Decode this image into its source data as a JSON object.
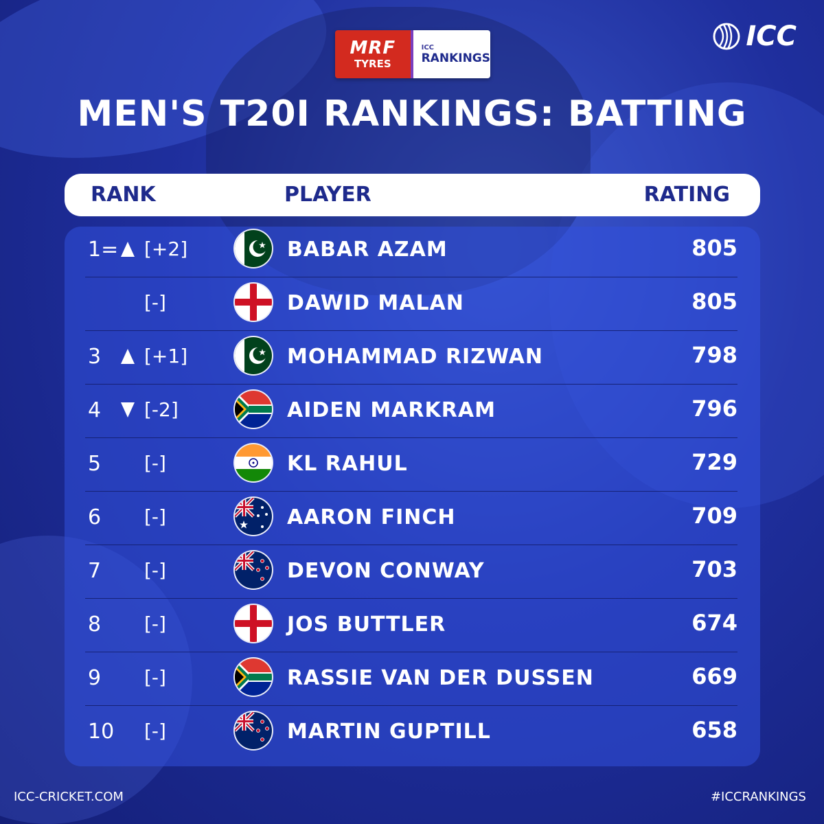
{
  "sponsor": {
    "brand_main": "MRF",
    "brand_sub": "TYRES",
    "rank_small": "ICC",
    "rank_big": "RANKINGS"
  },
  "icc_logo": "ICC",
  "title": "MEN'S T20I RANKINGS: BATTING",
  "header": {
    "rank": "RANK",
    "player": "PLAYER",
    "rating": "RATING"
  },
  "rows": [
    {
      "rank": "1=",
      "arrow": "up",
      "change": "[+2]",
      "flag": "pakistan",
      "player": "BABAR AZAM",
      "rating": "805"
    },
    {
      "rank": "",
      "arrow": "",
      "change": "[-]",
      "flag": "england",
      "player": "DAWID MALAN",
      "rating": "805"
    },
    {
      "rank": "3",
      "arrow": "up",
      "change": "[+1]",
      "flag": "pakistan",
      "player": "MOHAMMAD RIZWAN",
      "rating": "798"
    },
    {
      "rank": "4",
      "arrow": "down",
      "change": "[-2]",
      "flag": "south-africa",
      "player": "AIDEN MARKRAM",
      "rating": "796"
    },
    {
      "rank": "5",
      "arrow": "",
      "change": "[-]",
      "flag": "india",
      "player": "KL RAHUL",
      "rating": "729"
    },
    {
      "rank": "6",
      "arrow": "",
      "change": "[-]",
      "flag": "australia",
      "player": "AARON FINCH",
      "rating": "709"
    },
    {
      "rank": "7",
      "arrow": "",
      "change": "[-]",
      "flag": "new-zealand",
      "player": "DEVON CONWAY",
      "rating": "703"
    },
    {
      "rank": "8",
      "arrow": "",
      "change": "[-]",
      "flag": "england",
      "player": "JOS BUTTLER",
      "rating": "674"
    },
    {
      "rank": "9",
      "arrow": "",
      "change": "[-]",
      "flag": "south-africa",
      "player": "RASSIE VAN DER DUSSEN",
      "rating": "669"
    },
    {
      "rank": "10",
      "arrow": "",
      "change": "[-]",
      "flag": "new-zealand",
      "player": "MARTIN GUPTILL",
      "rating": "658"
    }
  ],
  "footer": {
    "website": "ICC-CRICKET.COM",
    "hashtag": "#ICCRANKINGS"
  },
  "colors": {
    "background": "#1f2f9e",
    "panel": "#3250dc",
    "header_text": "#1e2a8c",
    "mrf_red": "#d32a1f"
  }
}
